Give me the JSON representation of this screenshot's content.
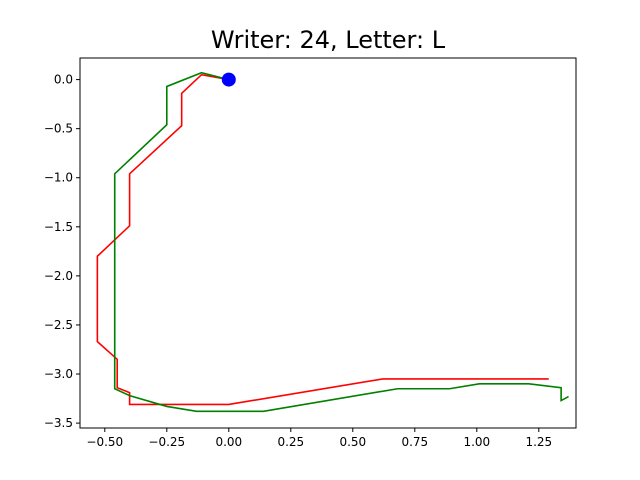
{
  "chart_data": {
    "type": "line",
    "title": "Writer: 24, Letter: L",
    "xlabel": "",
    "ylabel": "",
    "xlim": [
      -0.6,
      1.4
    ],
    "ylim": [
      -3.55,
      0.22
    ],
    "x_ticks": [
      -0.5,
      -0.25,
      0.0,
      0.25,
      0.5,
      0.75,
      1.0,
      1.25
    ],
    "x_tick_labels": [
      "−0.50",
      "−0.25",
      "0.00",
      "0.25",
      "0.50",
      "0.75",
      "1.00",
      "1.25"
    ],
    "y_ticks": [
      0.0,
      -0.5,
      -1.0,
      -1.5,
      -2.0,
      -2.5,
      -3.0,
      -3.5
    ],
    "y_tick_labels": [
      "0.0",
      "−0.5",
      "−1.0",
      "−1.5",
      "−2.0",
      "−2.5",
      "−3.0",
      "−3.5"
    ],
    "grid": false,
    "series": [
      {
        "color": "#ff0000",
        "points": [
          [
            0.0,
            0.0
          ],
          [
            -0.11,
            0.05
          ],
          [
            -0.19,
            -0.14
          ],
          [
            -0.19,
            -0.47
          ],
          [
            -0.4,
            -0.96
          ],
          [
            -0.4,
            -1.49
          ],
          [
            -0.53,
            -1.8
          ],
          [
            -0.53,
            -2.67
          ],
          [
            -0.45,
            -2.85
          ],
          [
            -0.45,
            -3.14
          ],
          [
            -0.4,
            -3.19
          ],
          [
            -0.4,
            -3.31
          ],
          [
            0.0,
            -3.31
          ],
          [
            0.62,
            -3.05
          ],
          [
            1.29,
            -3.05
          ]
        ]
      },
      {
        "color": "#008000",
        "points": [
          [
            0.0,
            0.0
          ],
          [
            -0.11,
            0.07
          ],
          [
            -0.25,
            -0.07
          ],
          [
            -0.25,
            -0.46
          ],
          [
            -0.46,
            -0.96
          ],
          [
            -0.46,
            -3.15
          ],
          [
            -0.4,
            -3.22
          ],
          [
            -0.25,
            -3.33
          ],
          [
            -0.13,
            -3.38
          ],
          [
            0.14,
            -3.38
          ],
          [
            0.68,
            -3.15
          ],
          [
            0.89,
            -3.15
          ],
          [
            1.01,
            -3.1
          ],
          [
            1.21,
            -3.1
          ],
          [
            1.34,
            -3.14
          ],
          [
            1.34,
            -3.27
          ],
          [
            1.37,
            -3.23
          ]
        ]
      }
    ],
    "markers": [
      {
        "x": 0.0,
        "y": 0.0,
        "color": "#0000ff"
      }
    ]
  }
}
